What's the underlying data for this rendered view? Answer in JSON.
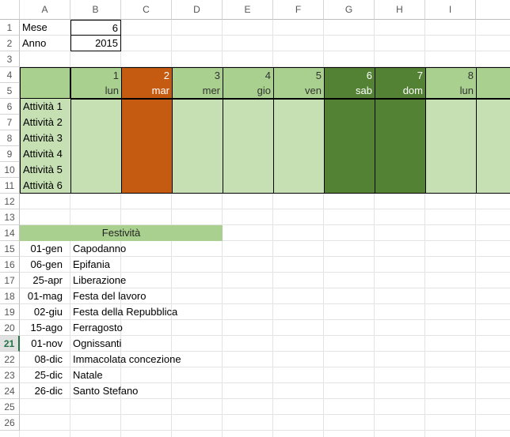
{
  "columns": [
    "A",
    "B",
    "C",
    "D",
    "E",
    "F",
    "G",
    "H",
    "I",
    ""
  ],
  "rows": [
    "1",
    "2",
    "3",
    "4",
    "5",
    "6",
    "7",
    "8",
    "9",
    "10",
    "11",
    "12",
    "13",
    "14",
    "15",
    "16",
    "17",
    "18",
    "19",
    "20",
    "21",
    "22",
    "23",
    "24",
    "25",
    "26"
  ],
  "active_row": "21",
  "info": {
    "mese_label": "Mese",
    "mese_value": "6",
    "anno_label": "Anno",
    "anno_value": "2015"
  },
  "calendar": {
    "days": [
      {
        "num": "1",
        "name": "lun",
        "kind": "workday"
      },
      {
        "num": "2",
        "name": "mar",
        "kind": "holiday"
      },
      {
        "num": "3",
        "name": "mer",
        "kind": "workday"
      },
      {
        "num": "4",
        "name": "gio",
        "kind": "workday"
      },
      {
        "num": "5",
        "name": "ven",
        "kind": "workday"
      },
      {
        "num": "6",
        "name": "sab",
        "kind": "weekend"
      },
      {
        "num": "7",
        "name": "dom",
        "kind": "weekend"
      },
      {
        "num": "8",
        "name": "lun",
        "kind": "workday"
      },
      {
        "num": "",
        "name": "m",
        "kind": "workday"
      }
    ],
    "activities": [
      "Attività 1",
      "Attività 2",
      "Attività 3",
      "Attività 4",
      "Attività 5",
      "Attività 6"
    ]
  },
  "holidays": {
    "title": "Festività",
    "list": [
      {
        "date": "01-gen",
        "name": "Capodanno"
      },
      {
        "date": "06-gen",
        "name": "Epifania"
      },
      {
        "date": "25-apr",
        "name": "Liberazione"
      },
      {
        "date": "01-mag",
        "name": "Festa del lavoro"
      },
      {
        "date": "02-giu",
        "name": "Festa della Repubblica"
      },
      {
        "date": "15-ago",
        "name": "Ferragosto"
      },
      {
        "date": "01-nov",
        "name": "Ognissanti"
      },
      {
        "date": "08-dic",
        "name": "Immacolata concezione"
      },
      {
        "date": "25-dic",
        "name": "Natale"
      },
      {
        "date": "26-dic",
        "name": "Santo Stefano"
      }
    ]
  },
  "colors": {
    "workday_header": "#a9d08e",
    "workday_body": "#c6e0b4",
    "holiday": "#c55a11",
    "weekend": "#548235",
    "label_fill": "#a9d08e"
  }
}
